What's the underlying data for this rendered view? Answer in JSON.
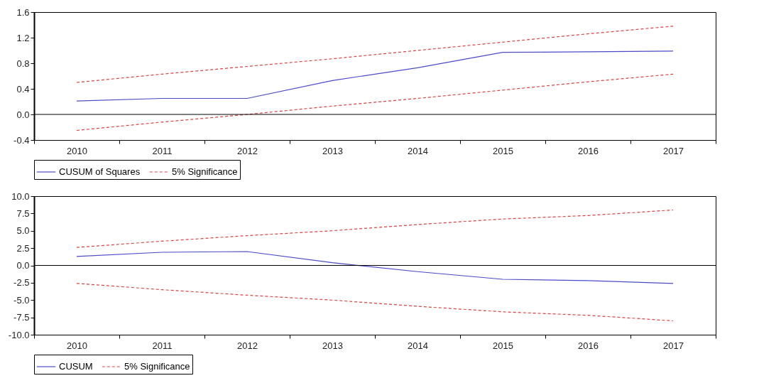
{
  "chart_data": [
    {
      "type": "line",
      "categories": [
        "2010",
        "2011",
        "2012",
        "2013",
        "2014",
        "2015",
        "2016",
        "2017"
      ],
      "ylim": [
        -0.4,
        1.6
      ],
      "yticks": [
        {
          "value": -0.4,
          "label": "-0.4"
        },
        {
          "value": 0,
          "label": "0.0"
        },
        0.4,
        0.8,
        1.2,
        1.6
      ],
      "grid": false,
      "legend": "bottom",
      "series": [
        {
          "name": "CUSUM of Squares",
          "color": "#4b4bc8",
          "line_style": "solid",
          "values": [
            0.21,
            0.25,
            0.25,
            0.53,
            0.73,
            0.97,
            0.98,
            0.99
          ]
        },
        {
          "name": "5% Significance",
          "color": "#e04040",
          "line_style": "dashed",
          "values": [
            0.5,
            0.63,
            0.75,
            0.87,
            1.0,
            1.13,
            1.26,
            1.38
          ]
        },
        {
          "color": "#e04040",
          "line_style": "dashed",
          "values": [
            -0.25,
            -0.12,
            0.0,
            0.13,
            0.25,
            0.38,
            0.51,
            0.63
          ]
        }
      ],
      "ref_lines": [
        {
          "axis": "y",
          "value": 0,
          "color": "#000000"
        }
      ]
    },
    {
      "type": "line",
      "categories": [
        "2010",
        "2011",
        "2012",
        "2013",
        "2014",
        "2015",
        "2016",
        "2017"
      ],
      "ylim": [
        -10,
        10
      ],
      "yticks": [
        {
          "value": -10,
          "label": "-10.0"
        },
        {
          "value": -7.5,
          "label": "-7.5"
        },
        {
          "value": -5,
          "label": "-5.0"
        },
        {
          "value": -2.5,
          "label": "-2.5"
        },
        {
          "value": 0,
          "label": "0.0"
        },
        {
          "value": 2.5,
          "label": "2.5"
        },
        {
          "value": 5,
          "label": "5.0"
        },
        {
          "value": 7.5,
          "label": "7.5"
        },
        {
          "value": 10,
          "label": "10.0"
        }
      ],
      "grid": false,
      "legend": "bottom",
      "series": [
        {
          "name": "CUSUM",
          "color": "#4b4bc8",
          "line_style": "solid",
          "values": [
            1.3,
            1.9,
            2.0,
            0.4,
            -0.9,
            -2.0,
            -2.2,
            -2.6
          ]
        },
        {
          "name": "5% Significance",
          "color": "#e04040",
          "line_style": "dashed",
          "values": [
            2.6,
            3.5,
            4.3,
            5.0,
            5.9,
            6.7,
            7.2,
            8.0
          ]
        },
        {
          "color": "#e04040",
          "line_style": "dashed",
          "values": [
            -2.6,
            -3.5,
            -4.3,
            -5.0,
            -5.9,
            -6.7,
            -7.2,
            -8.0
          ]
        }
      ],
      "ref_lines": [
        {
          "axis": "y",
          "value": 0,
          "color": "#000000"
        }
      ]
    }
  ]
}
